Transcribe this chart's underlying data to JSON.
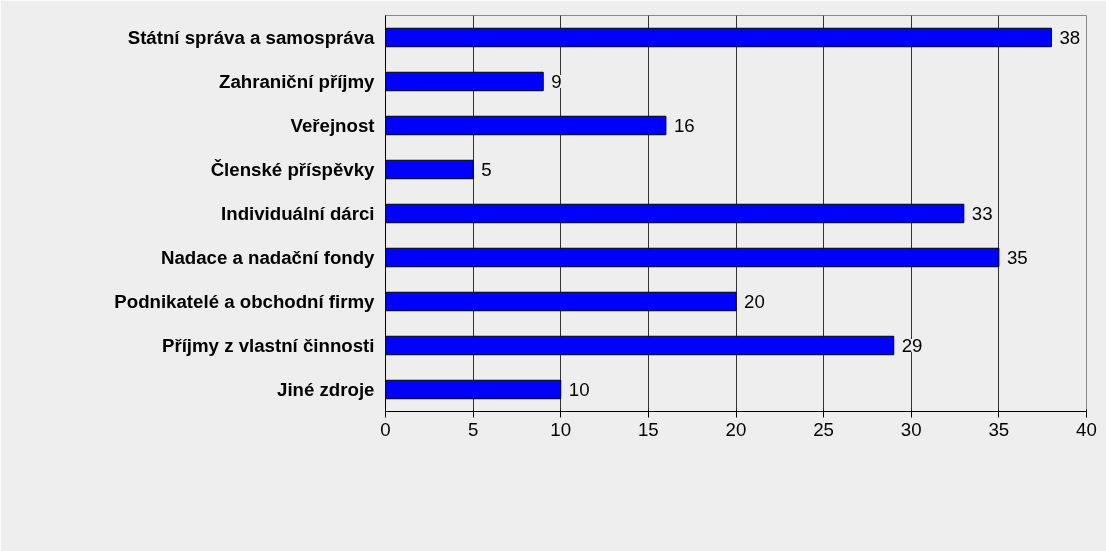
{
  "chart_data": {
    "type": "bar",
    "orientation": "horizontal",
    "categories": [
      "Státní správa a samospráva",
      "Zahraniční příjmy",
      "Veřejnost",
      "Členské příspěvky",
      "Individuální dárci",
      "Nadace a nadační fondy",
      "Podnikatelé a obchodní firmy",
      "Příjmy z vlastní činnosti",
      "Jiné zdroje"
    ],
    "values": [
      38,
      9,
      16,
      5,
      33,
      35,
      20,
      29,
      10
    ],
    "color": "#0000ff",
    "xlim": [
      0,
      40
    ],
    "xticks": [
      0,
      5,
      10,
      15,
      20,
      25,
      30,
      35,
      40
    ],
    "grid": "x",
    "data_labels": true
  }
}
